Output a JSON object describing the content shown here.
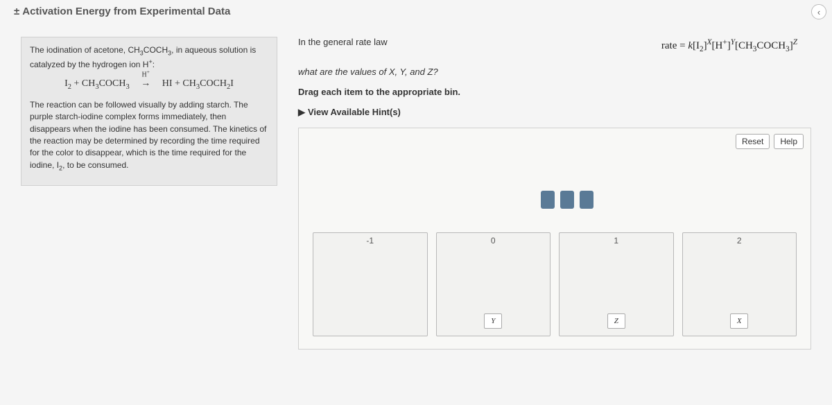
{
  "header": {
    "symbol": "±",
    "title": "Activation Energy from Experimental Data"
  },
  "nav": {
    "chevron": "‹"
  },
  "intro": {
    "p1_prefix": "The iodination of acetone, ",
    "p1_formula_html": "CH<sub>3</sub>COCH<sub>3</sub>",
    "p1_mid": ", in aqueous solution is catalyzed by the hydrogen ion ",
    "p1_cat_html": "H<sup>+</sup>",
    "p1_suffix": ":",
    "equation": {
      "left_html": "I<sub>2</sub> + CH<sub>3</sub>COCH<sub>3</sub>",
      "catalyst_html": "H<sup>+</sup>",
      "right_html": "HI + CH<sub>3</sub>COCH<sub>2</sub>I"
    },
    "p2_prefix": "The reaction can be followed visually by adding starch. The purple starch-iodine complex forms immediately, then disappears when the iodine has been consumed. The kinetics of the reaction may be determined by recording the time required for the color to disappear, which is the time required for the iodine, ",
    "p2_formula_html": "I<sub>2</sub>",
    "p2_suffix": ", to be consumed."
  },
  "question": {
    "line1": "In the general rate law",
    "rate_eq_html": "rate = <span class='ital'>k</span>[I<sub>2</sub>]<sup><span class='ital'>X</span></sup>[H<sup>+</sup>]<sup><span class='ital'>Y</span></sup>[CH<sub>3</sub>COCH<sub>3</sub>]<sup><span class='ital'>Z</span></sup>",
    "line2_prefix": "what are the values of ",
    "line2_vars_html": "<span class='ital'>X</span>, <span class='ital'>Y</span>, and <span class='ital'>Z</span>",
    "line2_suffix": "?",
    "line3": "Drag each item to the appropriate bin.",
    "hints_label": "View Available Hint(s)"
  },
  "workspace": {
    "reset_label": "Reset",
    "help_label": "Help",
    "bins": [
      {
        "label": "-1",
        "tile": ""
      },
      {
        "label": "0",
        "tile": "Y"
      },
      {
        "label": "1",
        "tile": "Z"
      },
      {
        "label": "2",
        "tile": "X"
      }
    ]
  },
  "colors": {
    "page_bg": "#f5f5f5",
    "panel_bg": "#e8e8e8",
    "workspace_bg": "#f8f8f6",
    "slot_color": "#5a7a96",
    "border": "#d0d0d0"
  }
}
